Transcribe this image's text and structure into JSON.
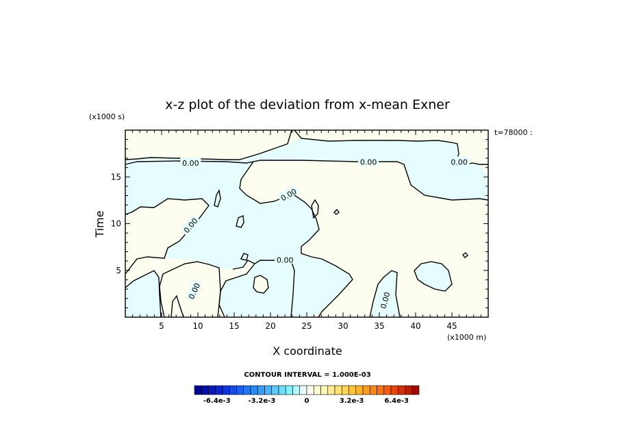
{
  "chart_data": {
    "type": "heatmap",
    "title": "x-z plot of the deviation from x-mean Exner",
    "xlabel": "X coordinate",
    "ylabel": "Time",
    "x_unit": "(x1000 m)",
    "y_unit": "(x1000 s)",
    "time_label": "t=78000 :",
    "xlim": [
      0,
      50
    ],
    "ylim": [
      0,
      20
    ],
    "x_ticks": [
      5,
      10,
      15,
      20,
      25,
      30,
      35,
      40,
      45
    ],
    "y_ticks": [
      5,
      10,
      15
    ],
    "contour_labels": [
      {
        "text": "0.00",
        "x": 9,
        "y": 16.5,
        "angle": 0
      },
      {
        "text": "0.00",
        "x": 33.5,
        "y": 16.6,
        "angle": 0
      },
      {
        "text": "0.00",
        "x": 46,
        "y": 16.6,
        "angle": 0
      },
      {
        "text": "0.00",
        "x": 22,
        "y": 6.1,
        "angle": 0
      },
      {
        "text": "0.00",
        "x": 9,
        "y": 9.8,
        "angle": -50
      },
      {
        "text": "0.00",
        "x": 22.5,
        "y": 13.1,
        "angle": -30
      },
      {
        "text": "0.00",
        "x": 9.5,
        "y": 2.8,
        "angle": -65
      },
      {
        "text": "0.00",
        "x": 35.8,
        "y": 1.8,
        "angle": -75
      }
    ],
    "contour_interval_text": "CONTOUR INTERVAL = 1.000E-03",
    "colorbar": {
      "min": -0.008,
      "max": 0.008,
      "tick_labels": [
        {
          "text": "-6.4e-3",
          "value": -0.0064
        },
        {
          "text": "-3.2e-3",
          "value": -0.0032
        },
        {
          "text": "0",
          "value": 0
        },
        {
          "text": "3.2e-3",
          "value": 0.0032
        },
        {
          "text": "6.4e-3",
          "value": 0.0064
        }
      ]
    },
    "colors": {
      "negative_fill": "#e6fdfd",
      "positive_fill": "#fdfdf0",
      "contour": "#000000"
    }
  }
}
